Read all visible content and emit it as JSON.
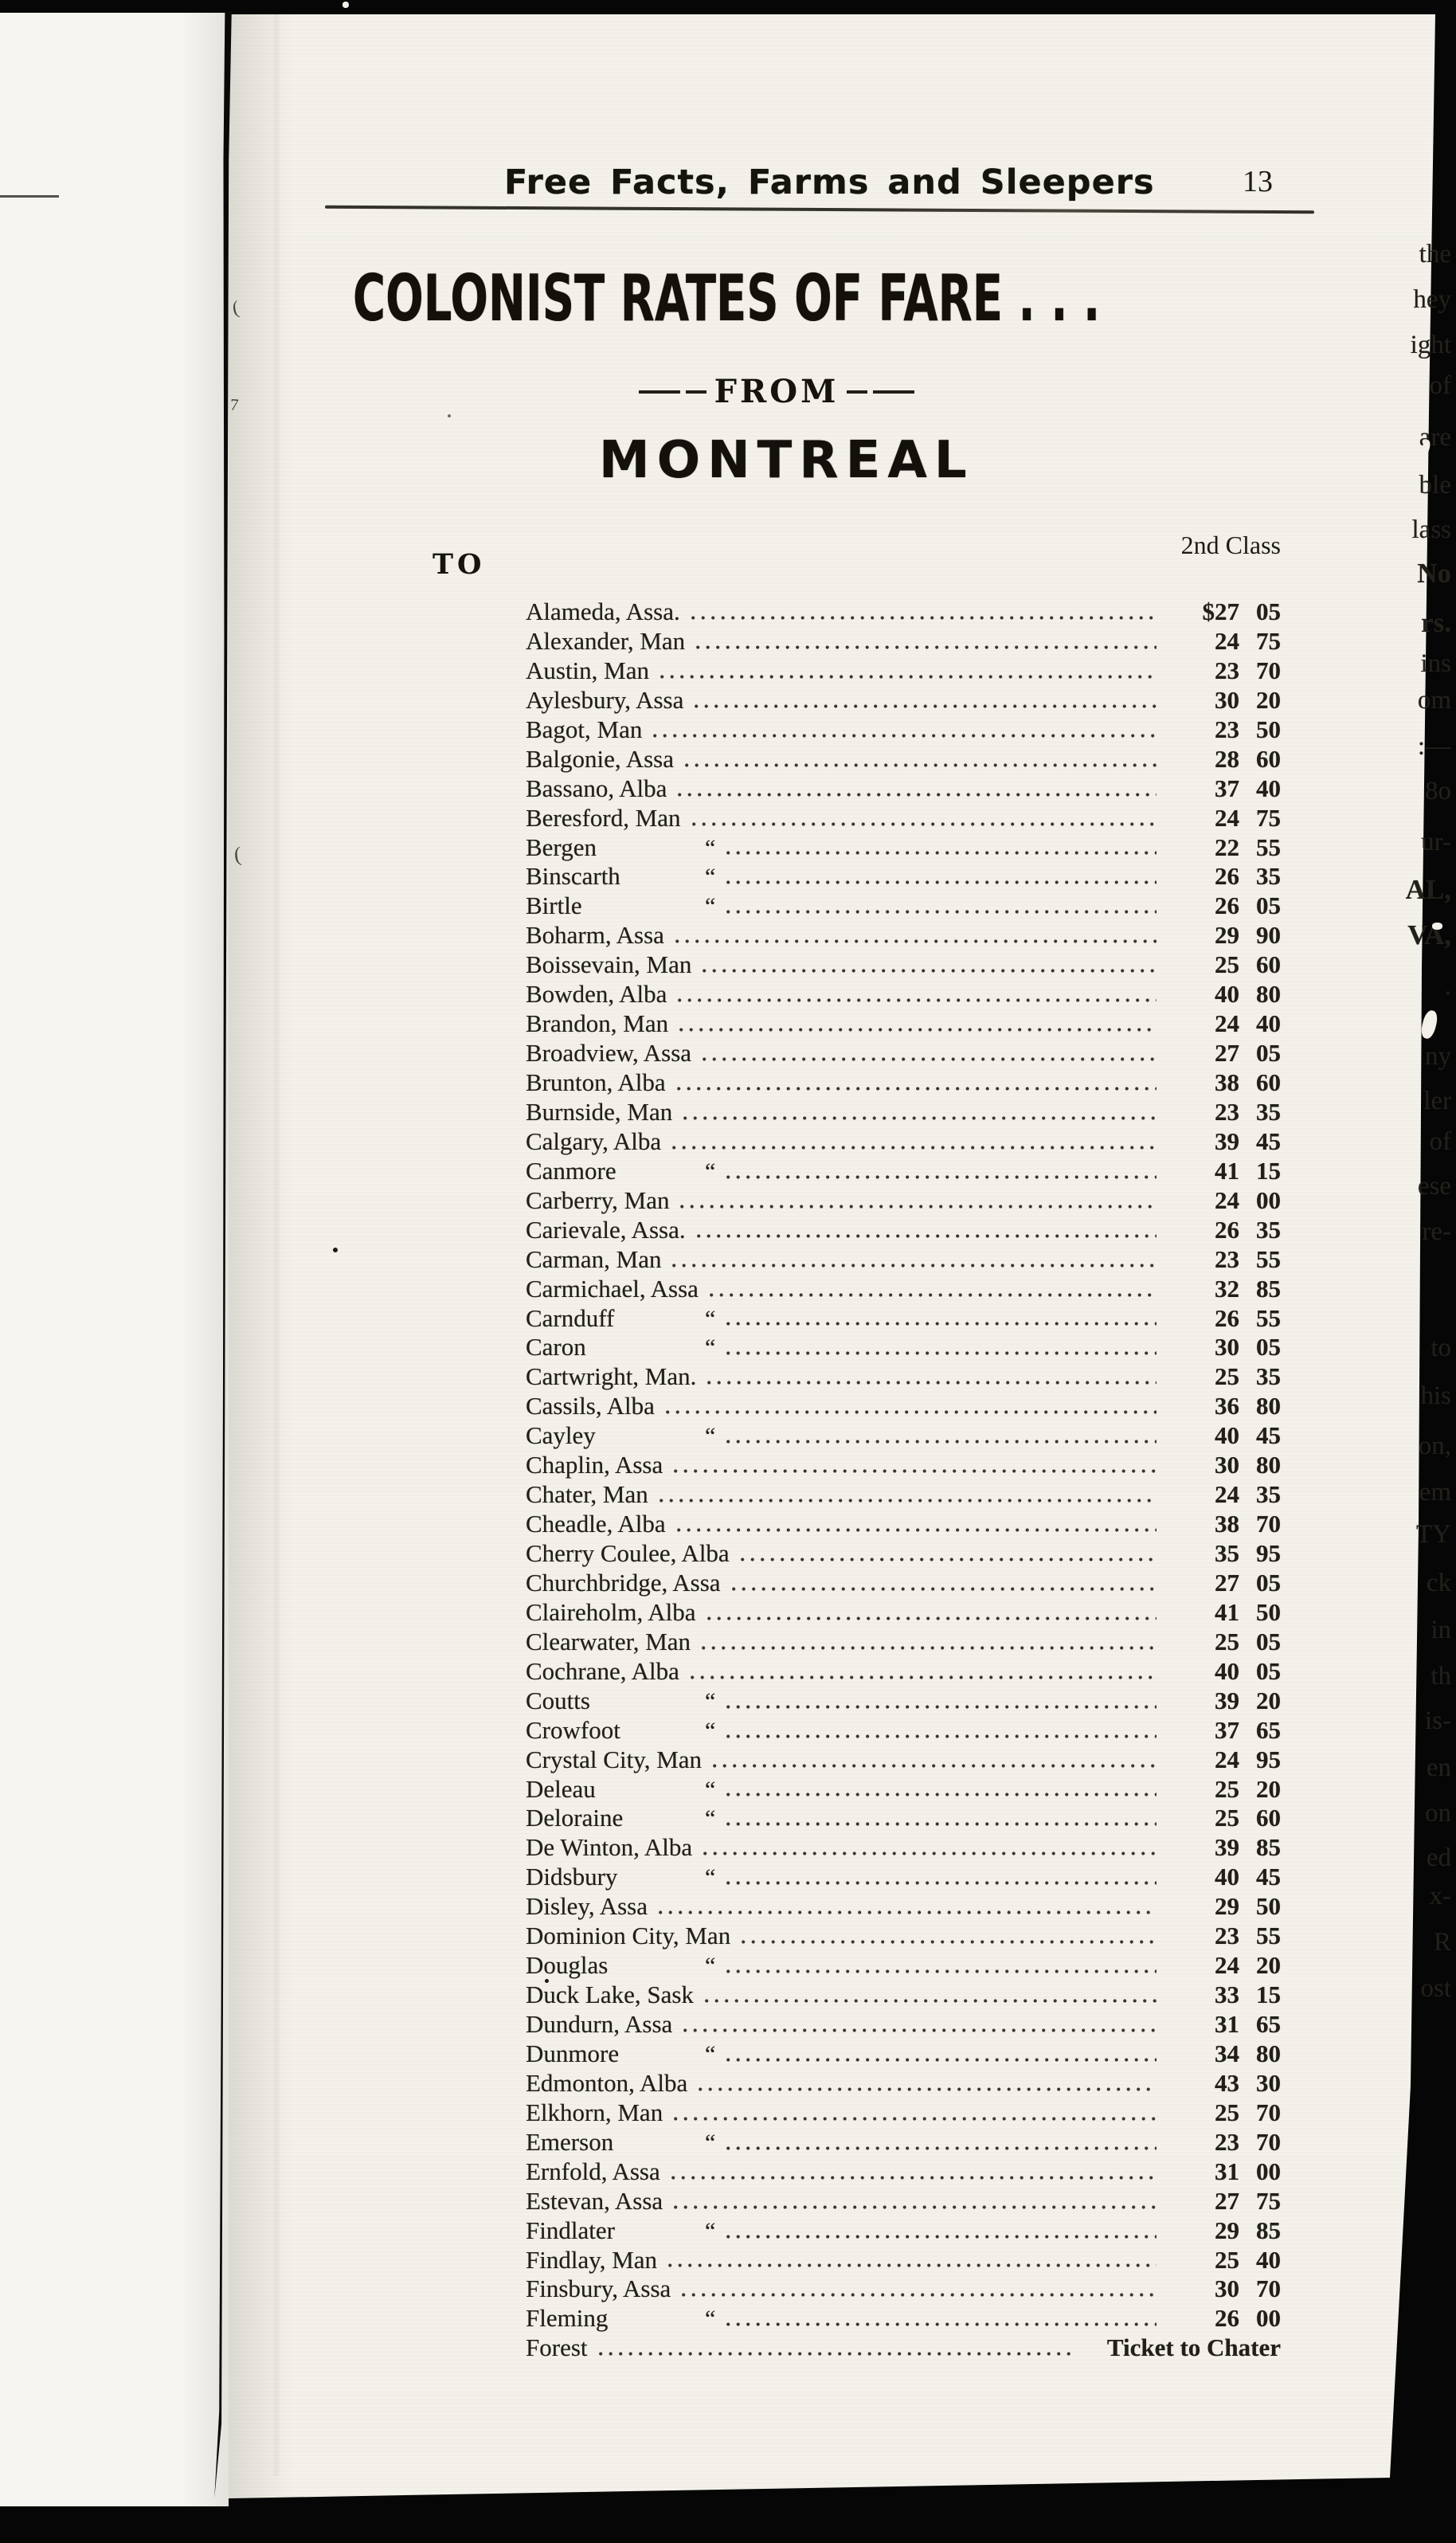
{
  "header": {
    "title": "Free Facts, Farms and Sleepers",
    "page_number": "13"
  },
  "title_block": {
    "main_title": "COLONIST RATES OF FARE . . .",
    "from_label": "FROM",
    "city": "MONTREAL"
  },
  "table": {
    "to_label": "TO",
    "class_header": "2nd Class",
    "ditto_mark": "“",
    "rows": [
      {
        "name": "Alameda, Assa.",
        "dollars": "$27",
        "cents": "05"
      },
      {
        "name": "Alexander, Man",
        "dollars": "24",
        "cents": "75"
      },
      {
        "name": "Austin, Man",
        "dollars": "23",
        "cents": "70"
      },
      {
        "name": "Aylesbury, Assa",
        "dollars": "30",
        "cents": "20"
      },
      {
        "name": "Bagot, Man",
        "dollars": "23",
        "cents": "50"
      },
      {
        "name": "Balgonie, Assa",
        "dollars": "28",
        "cents": "60"
      },
      {
        "name": "Bassano, Alba",
        "dollars": "37",
        "cents": "40"
      },
      {
        "name": "Beresford, Man",
        "dollars": "24",
        "cents": "75"
      },
      {
        "name": "Bergen",
        "ditto": true,
        "dollars": "22",
        "cents": "55"
      },
      {
        "name": "Binscarth",
        "ditto": true,
        "dollars": "26",
        "cents": "35"
      },
      {
        "name": "Birtle",
        "ditto": true,
        "dollars": "26",
        "cents": "05"
      },
      {
        "name": "Boharm, Assa",
        "dollars": "29",
        "cents": "90"
      },
      {
        "name": "Boissevain, Man",
        "dollars": "25",
        "cents": "60"
      },
      {
        "name": "Bowden, Alba",
        "dollars": "40",
        "cents": "80"
      },
      {
        "name": "Brandon, Man",
        "dollars": "24",
        "cents": "40"
      },
      {
        "name": "Broadview, Assa",
        "dollars": "27",
        "cents": "05"
      },
      {
        "name": "Brunton, Alba",
        "dollars": "38",
        "cents": "60"
      },
      {
        "name": "Burnside, Man",
        "dollars": "23",
        "cents": "35"
      },
      {
        "name": "Calgary, Alba",
        "dollars": "39",
        "cents": "45"
      },
      {
        "name": "Canmore",
        "ditto": true,
        "dollars": "41",
        "cents": "15"
      },
      {
        "name": "Carberry, Man",
        "dollars": "24",
        "cents": "00"
      },
      {
        "name": "Carievale, Assa.",
        "dollars": "26",
        "cents": "35"
      },
      {
        "name": "Carman, Man",
        "dollars": "23",
        "cents": "55"
      },
      {
        "name": "Carmichael, Assa",
        "dollars": "32",
        "cents": "85"
      },
      {
        "name": "Carnduff",
        "ditto": true,
        "dollars": "26",
        "cents": "55"
      },
      {
        "name": "Caron",
        "ditto": true,
        "dollars": "30",
        "cents": "05"
      },
      {
        "name": "Cartwright, Man.",
        "dollars": "25",
        "cents": "35"
      },
      {
        "name": "Cassils, Alba",
        "dollars": "36",
        "cents": "80"
      },
      {
        "name": "Cayley",
        "ditto": true,
        "dollars": "40",
        "cents": "45"
      },
      {
        "name": "Chaplin, Assa",
        "dollars": "30",
        "cents": "80"
      },
      {
        "name": "Chater, Man",
        "dollars": "24",
        "cents": "35"
      },
      {
        "name": "Cheadle, Alba",
        "dollars": "38",
        "cents": "70"
      },
      {
        "name": "Cherry Coulee, Alba",
        "dollars": "35",
        "cents": "95"
      },
      {
        "name": "Churchbridge, Assa",
        "dollars": "27",
        "cents": "05"
      },
      {
        "name": "Claireholm, Alba",
        "dollars": "41",
        "cents": "50"
      },
      {
        "name": "Clearwater, Man",
        "dollars": "25",
        "cents": "05"
      },
      {
        "name": "Cochrane, Alba",
        "dollars": "40",
        "cents": "05"
      },
      {
        "name": "Coutts",
        "ditto": true,
        "dollars": "39",
        "cents": "20"
      },
      {
        "name": "Crowfoot",
        "ditto": true,
        "dollars": "37",
        "cents": "65"
      },
      {
        "name": "Crystal City, Man",
        "dollars": "24",
        "cents": "95"
      },
      {
        "name": "Deleau",
        "ditto": true,
        "dollars": "25",
        "cents": "20"
      },
      {
        "name": "Deloraine",
        "ditto": true,
        "dollars": "25",
        "cents": "60"
      },
      {
        "name": "De Winton, Alba",
        "dollars": "39",
        "cents": "85"
      },
      {
        "name": "Didsbury",
        "ditto": true,
        "dollars": "40",
        "cents": "45"
      },
      {
        "name": "Disley, Assa",
        "dollars": "29",
        "cents": "50"
      },
      {
        "name": "Dominion City, Man",
        "dollars": "23",
        "cents": "55"
      },
      {
        "name": "Douglas",
        "ditto": true,
        "dollars": "24",
        "cents": "20"
      },
      {
        "name": "Duck Lake, Sask",
        "dollars": "33",
        "cents": "15"
      },
      {
        "name": "Dundurn, Assa",
        "dollars": "31",
        "cents": "65"
      },
      {
        "name": "Dunmore",
        "ditto": true,
        "dollars": "34",
        "cents": "80"
      },
      {
        "name": "Edmonton, Alba",
        "dollars": "43",
        "cents": "30"
      },
      {
        "name": "Elkhorn, Man",
        "dollars": "25",
        "cents": "70"
      },
      {
        "name": "Emerson",
        "ditto": true,
        "dollars": "23",
        "cents": "70"
      },
      {
        "name": "Ernfold, Assa",
        "dollars": "31",
        "cents": "00"
      },
      {
        "name": "Estevan, Assa",
        "dollars": "27",
        "cents": "75"
      },
      {
        "name": "Findlater",
        "ditto": true,
        "dollars": "29",
        "cents": "85"
      },
      {
        "name": "Findlay, Man",
        "dollars": "25",
        "cents": "40"
      },
      {
        "name": "Finsbury, Assa",
        "dollars": "30",
        "cents": "70"
      },
      {
        "name": "Fleming",
        "ditto": true,
        "dollars": "26",
        "cents": "00"
      },
      {
        "name": "Forest",
        "note": "Ticket to Chater"
      }
    ]
  },
  "facing_page": {
    "fragments": [
      {
        "text": "the"
      },
      {
        "text": "hey"
      },
      {
        "text": "ight"
      },
      {
        "text": "of"
      },
      {
        "text": "are"
      },
      {
        "text": "ble"
      },
      {
        "text": "lass"
      },
      {
        "text": "No",
        "bold": true
      },
      {
        "text": "rs.",
        "bold": true
      },
      {
        "text": "ins"
      },
      {
        "text": "om"
      },
      {
        "text": ":—"
      },
      {
        "text": "8o"
      },
      {
        "text": "ur-"
      },
      {
        "text": "AL,",
        "bold": true
      },
      {
        "text": "VA,",
        "bold": true
      },
      {
        "text": "."
      },
      {
        "text": "ny"
      },
      {
        "text": "ler"
      },
      {
        "text": "of"
      },
      {
        "text": "ese"
      },
      {
        "text": "re-"
      },
      {
        "text": "to"
      },
      {
        "text": "his"
      },
      {
        "text": "on,"
      },
      {
        "text": "em"
      },
      {
        "text": "TY"
      },
      {
        "text": "ck"
      },
      {
        "text": "in"
      },
      {
        "text": "th"
      },
      {
        "text": "is-"
      },
      {
        "text": "en"
      },
      {
        "text": "on"
      },
      {
        "text": "ed"
      },
      {
        "text": "x-"
      },
      {
        "text": "R"
      },
      {
        "text": "ost"
      }
    ]
  },
  "artifacts": {
    "spine_marks": [
      "(",
      "7",
      "("
    ]
  }
}
